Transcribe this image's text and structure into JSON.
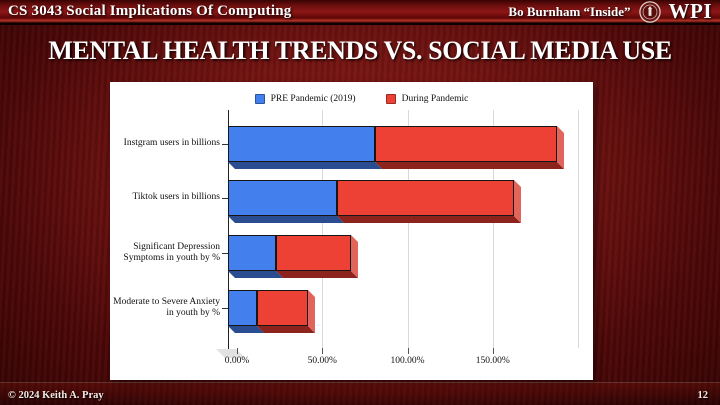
{
  "header": {
    "course": "CS 3043 Social Implications Of Computing",
    "topic": "Bo Burnham “Inside”",
    "logo_text": "WPI"
  },
  "title": "MENTAL HEALTH TRENDS VS. SOCIAL MEDIA USE",
  "footer": {
    "copyright": "© 2024 Keith A. Pray",
    "page_number": "12"
  },
  "colors": {
    "slide_background": "#671010",
    "header_bar": "#8c1616",
    "panel_background": "#ffffff",
    "pre_pandemic_blue": "#4380EE",
    "pre_pandemic_blue_dark": "#2a4d92",
    "during_pandemic_red": "#EE4136",
    "during_pandemic_red_dark": "#8c231c",
    "during_pandemic_red_side": "#e2655c"
  },
  "chart_data": {
    "type": "bar",
    "orientation": "horizontal",
    "stacked": true,
    "style": "3d",
    "title": "",
    "xlabel": "",
    "ylabel": "",
    "categories": [
      "Instgram users in billions",
      "Tiktok users in billions",
      "Significant Depression Symptoms in youth by %",
      "Moderate to Severe Anxiety in youth by %"
    ],
    "series": [
      {
        "name": "PRE Pandemic (2019)",
        "color": "#4380EE",
        "values": [
          86,
          64,
          28,
          17
        ]
      },
      {
        "name": "During Pandemic",
        "color": "#EE4136",
        "values": [
          107,
          104,
          44,
          30
        ]
      }
    ],
    "x_ticks": [
      "0.00%",
      "50.00%",
      "100.00%",
      "150.00%"
    ],
    "x_tick_values": [
      0,
      50,
      100,
      150
    ],
    "xlim": [
      0,
      200
    ],
    "grid": true,
    "legend_position": "top"
  }
}
